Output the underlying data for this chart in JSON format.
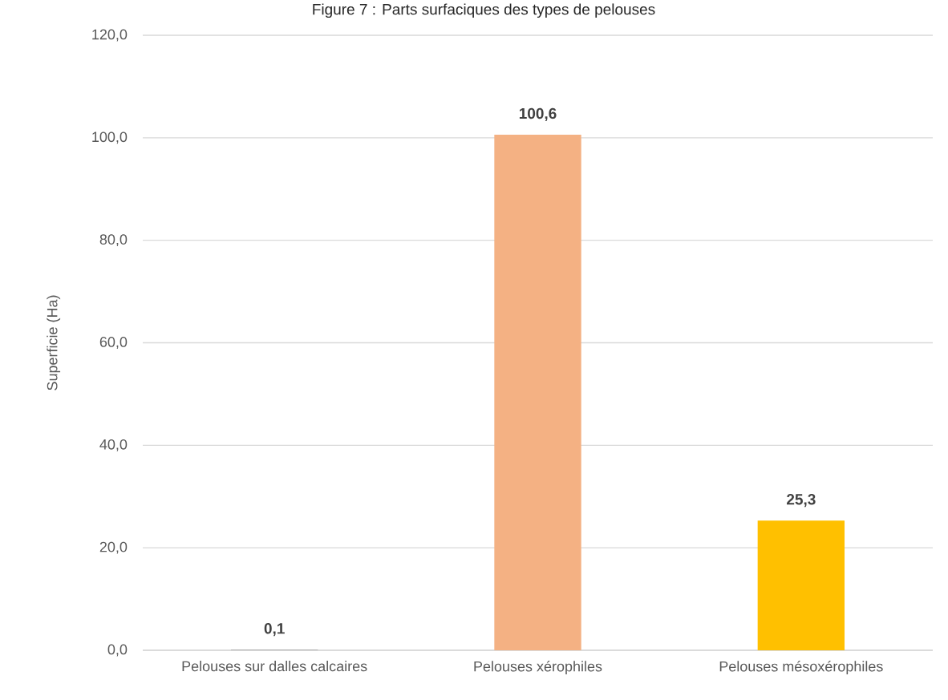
{
  "chart_data": {
    "type": "bar",
    "title": "Figure 7 : Parts surfaciques des types de pelouses",
    "ylabel": "Superficie (Ha)",
    "categories": [
      "Pelouses sur dalles calcaires",
      "Pelouses xérophiles",
      "Pelouses mésoxérophiles"
    ],
    "values": [
      0.1,
      100.6,
      25.3
    ],
    "colors": [
      "#a5a5a5",
      "#f4b183",
      "#ffc000"
    ],
    "value_labels": [
      "0,1",
      "100,6",
      "25,3"
    ],
    "ylim": [
      0,
      120
    ],
    "yticks": [
      {
        "value": 0,
        "label": "0,0"
      },
      {
        "value": 20,
        "label": "20,0"
      },
      {
        "value": 40,
        "label": "40,0"
      },
      {
        "value": 60,
        "label": "60,0"
      },
      {
        "value": 80,
        "label": "80,0"
      },
      {
        "value": 100,
        "label": "100,0"
      },
      {
        "value": 120,
        "label": "120,0"
      }
    ],
    "grid": "y"
  }
}
